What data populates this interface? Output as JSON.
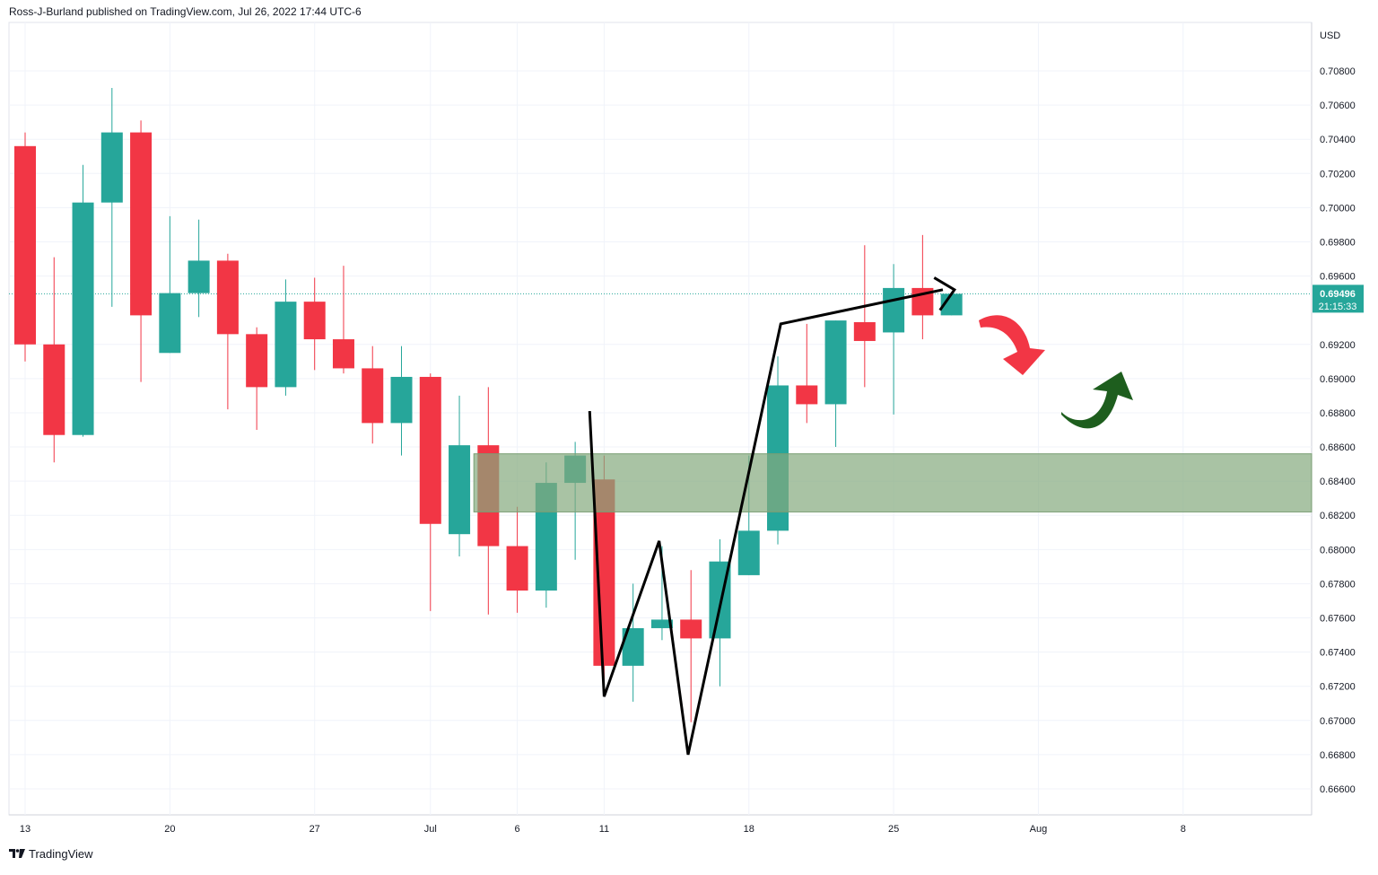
{
  "header": {
    "text": "Ross-J-Burland published on TradingView.com, Jul 26, 2022 17:44 UTC-6"
  },
  "footer": {
    "logo_icon": "tradingview-logo-icon",
    "text": "TradingView"
  },
  "axis": {
    "currency": "USD"
  },
  "price_label": {
    "price": "0.69496",
    "countdown": "21:15:33",
    "color": "#26a69a"
  },
  "colors": {
    "up": "#26a69a",
    "down": "#f23645",
    "zone": "#84a97e",
    "arrow_down": "#f23645",
    "arrow_up": "#1e5e1e"
  },
  "chart_data": {
    "type": "candlestick",
    "y_ticks": [
      "0.70800",
      "0.70600",
      "0.70400",
      "0.70200",
      "0.70000",
      "0.69800",
      "0.69600",
      "0.69200",
      "0.69000",
      "0.68800",
      "0.68600",
      "0.68400",
      "0.68200",
      "0.68000",
      "0.67800",
      "0.67600",
      "0.67400",
      "0.67200",
      "0.67000",
      "0.66800",
      "0.66600"
    ],
    "x_ticks": [
      {
        "label": "13",
        "index": 0
      },
      {
        "label": "20",
        "index": 5
      },
      {
        "label": "27",
        "index": 10
      },
      {
        "label": "Jul",
        "index": 14
      },
      {
        "label": "6",
        "index": 17
      },
      {
        "label": "11",
        "index": 20
      },
      {
        "label": "18",
        "index": 25
      },
      {
        "label": "25",
        "index": 30
      },
      {
        "label": "Aug",
        "index": 35
      },
      {
        "label": "8",
        "index": 40
      }
    ],
    "ylim": [
      0.665,
      0.7098
    ],
    "last_price": 0.69496,
    "candles": [
      {
        "o": 0.7036,
        "h": 0.7044,
        "l": 0.691,
        "c": 0.692
      },
      {
        "o": 0.692,
        "h": 0.6971,
        "l": 0.6851,
        "c": 0.6867
      },
      {
        "o": 0.6867,
        "h": 0.7025,
        "l": 0.6866,
        "c": 0.7003
      },
      {
        "o": 0.7003,
        "h": 0.707,
        "l": 0.6942,
        "c": 0.7044
      },
      {
        "o": 0.7044,
        "h": 0.7051,
        "l": 0.6898,
        "c": 0.6937
      },
      {
        "o": 0.6915,
        "h": 0.6995,
        "l": 0.6915,
        "c": 0.695
      },
      {
        "o": 0.695,
        "h": 0.6993,
        "l": 0.6936,
        "c": 0.6969
      },
      {
        "o": 0.6969,
        "h": 0.6973,
        "l": 0.6882,
        "c": 0.6926
      },
      {
        "o": 0.6926,
        "h": 0.693,
        "l": 0.687,
        "c": 0.6895
      },
      {
        "o": 0.6895,
        "h": 0.6958,
        "l": 0.689,
        "c": 0.6945
      },
      {
        "o": 0.6945,
        "h": 0.6959,
        "l": 0.6905,
        "c": 0.6923
      },
      {
        "o": 0.6923,
        "h": 0.6966,
        "l": 0.6903,
        "c": 0.6906
      },
      {
        "o": 0.6906,
        "h": 0.6919,
        "l": 0.6862,
        "c": 0.6874
      },
      {
        "o": 0.6874,
        "h": 0.6919,
        "l": 0.6855,
        "c": 0.6901
      },
      {
        "o": 0.6901,
        "h": 0.6903,
        "l": 0.6764,
        "c": 0.6815
      },
      {
        "o": 0.6809,
        "h": 0.689,
        "l": 0.6796,
        "c": 0.6861
      },
      {
        "o": 0.6861,
        "h": 0.6895,
        "l": 0.6762,
        "c": 0.6802
      },
      {
        "o": 0.6802,
        "h": 0.6825,
        "l": 0.6763,
        "c": 0.6776
      },
      {
        "o": 0.6776,
        "h": 0.6851,
        "l": 0.6766,
        "c": 0.6839
      },
      {
        "o": 0.6839,
        "h": 0.6863,
        "l": 0.6794,
        "c": 0.6855
      },
      {
        "o": 0.6841,
        "h": 0.6855,
        "l": 0.6715,
        "c": 0.6732
      },
      {
        "o": 0.6732,
        "h": 0.678,
        "l": 0.6711,
        "c": 0.6754
      },
      {
        "o": 0.6754,
        "h": 0.6802,
        "l": 0.6747,
        "c": 0.6759
      },
      {
        "o": 0.6759,
        "h": 0.6788,
        "l": 0.6699,
        "c": 0.6748
      },
      {
        "o": 0.6748,
        "h": 0.6806,
        "l": 0.672,
        "c": 0.6793
      },
      {
        "o": 0.6785,
        "h": 0.6855,
        "l": 0.6785,
        "c": 0.6811
      },
      {
        "o": 0.6811,
        "h": 0.6913,
        "l": 0.6803,
        "c": 0.6896
      },
      {
        "o": 0.6896,
        "h": 0.6932,
        "l": 0.6874,
        "c": 0.6885
      },
      {
        "o": 0.6885,
        "h": 0.6934,
        "l": 0.686,
        "c": 0.6934
      },
      {
        "o": 0.6933,
        "h": 0.6978,
        "l": 0.6895,
        "c": 0.6922
      },
      {
        "o": 0.6927,
        "h": 0.6967,
        "l": 0.6879,
        "c": 0.6953
      },
      {
        "o": 0.6953,
        "h": 0.6984,
        "l": 0.6923,
        "c": 0.6937
      },
      {
        "o": 0.6937,
        "h": 0.695,
        "l": 0.6937,
        "c": 0.69496
      }
    ],
    "zone": {
      "from": 0.6822,
      "to": 0.6856,
      "start_index": 15.5
    },
    "pattern_line": [
      {
        "i": 19.5,
        "p": 0.6881
      },
      {
        "i": 20.0,
        "p": 0.6714
      },
      {
        "i": 21.9,
        "p": 0.6805
      },
      {
        "i": 22.9,
        "p": 0.668
      },
      {
        "i": 26.1,
        "p": 0.6932
      },
      {
        "i": 31.7,
        "p": 0.6952
      }
    ],
    "pattern_arrowhead": [
      {
        "i": 31.4,
        "p": 0.6959
      },
      {
        "i": 32.1,
        "p": 0.6952
      },
      {
        "i": 31.6,
        "p": 0.694
      }
    ]
  }
}
